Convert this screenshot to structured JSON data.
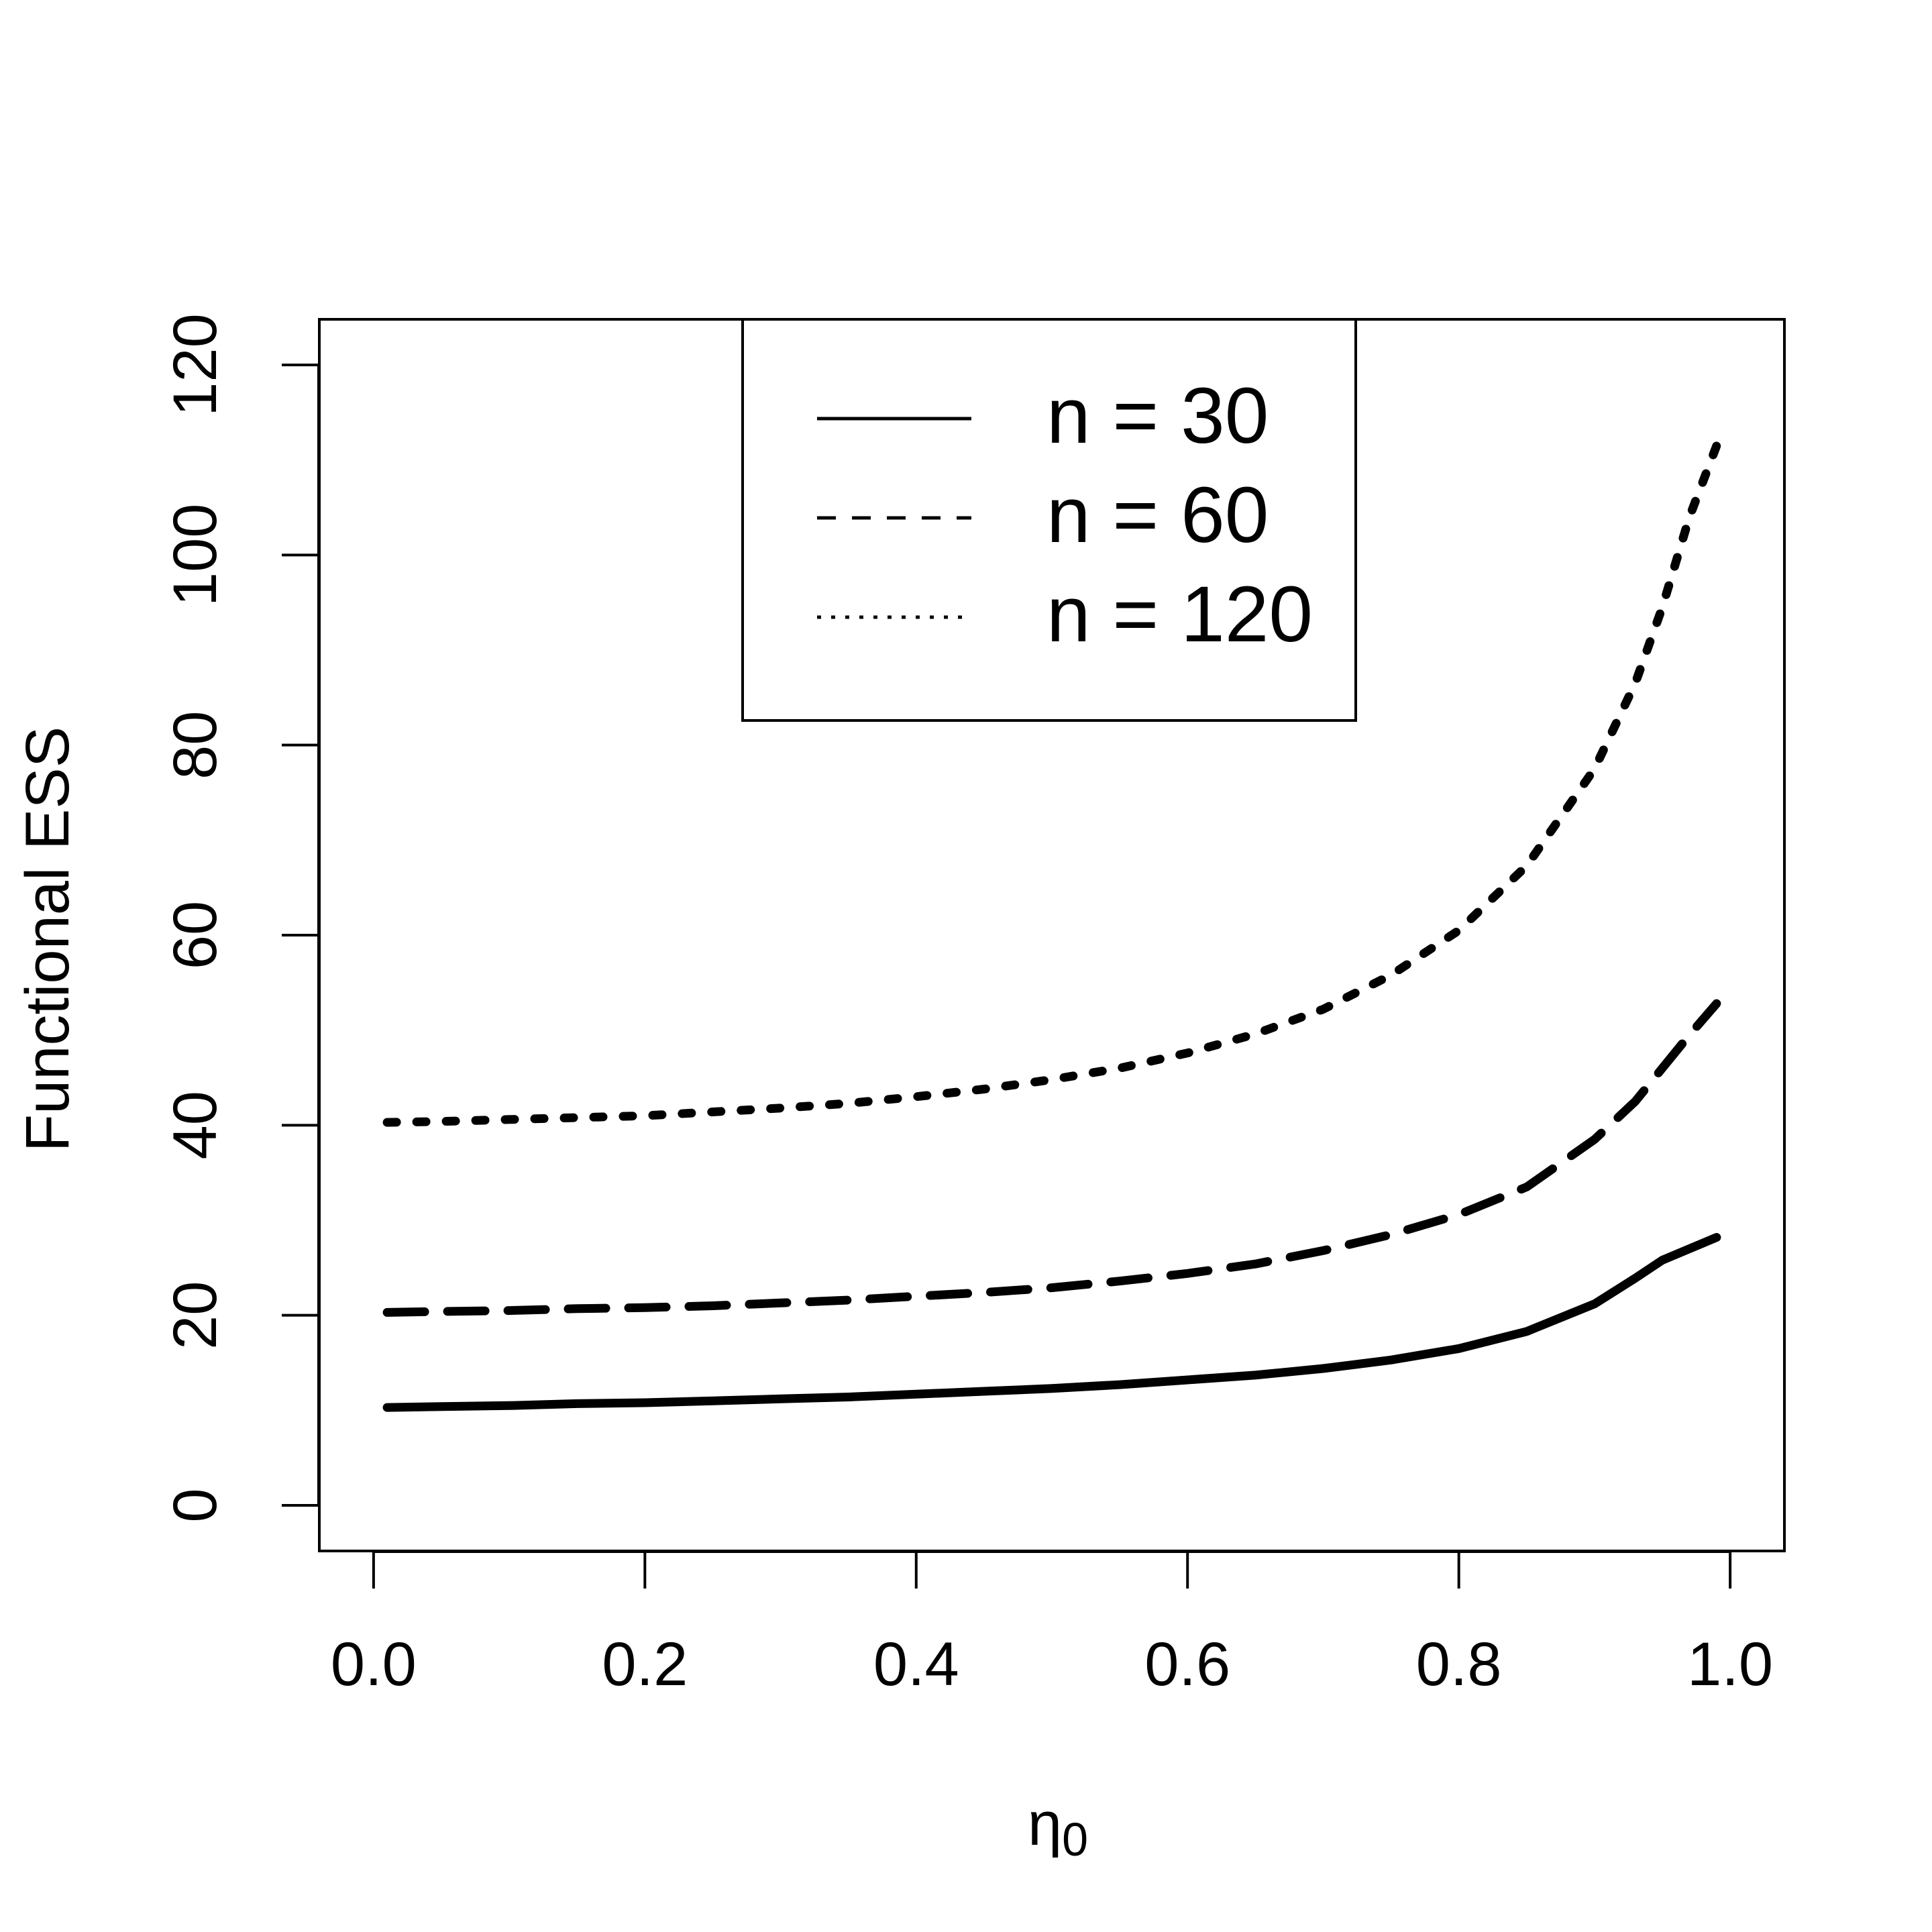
{
  "chart_data": {
    "type": "line",
    "title": "",
    "xlabel": "η",
    "xlabel_subscript": "0",
    "ylabel": "Functional ESS",
    "xlim": [
      -0.04,
      1.04
    ],
    "ylim": [
      -4.8,
      124.8
    ],
    "x_ticks": [
      0.0,
      0.2,
      0.4,
      0.6,
      0.8,
      1.0
    ],
    "x_tick_labels": [
      "0.0",
      "0.2",
      "0.4",
      "0.6",
      "0.8",
      "1.0"
    ],
    "y_ticks": [
      0,
      20,
      40,
      60,
      80,
      100,
      120
    ],
    "y_tick_labels": [
      "0",
      "20",
      "40",
      "60",
      "80",
      "100",
      "120"
    ],
    "grid": false,
    "legend_position": "top-center",
    "x": [
      0.01,
      0.05,
      0.1,
      0.15,
      0.2,
      0.25,
      0.3,
      0.35,
      0.4,
      0.45,
      0.5,
      0.55,
      0.6,
      0.65,
      0.7,
      0.75,
      0.8,
      0.85,
      0.9,
      0.93,
      0.95,
      0.97,
      0.99
    ],
    "series": [
      {
        "name": "n = 30",
        "line_style": "solid",
        "values": [
          10.3,
          10.4,
          10.5,
          10.7,
          10.8,
          11.0,
          11.2,
          11.4,
          11.7,
          12.0,
          12.3,
          12.7,
          13.2,
          13.7,
          14.4,
          15.3,
          16.5,
          18.3,
          21.2,
          23.9,
          25.8,
          27.0,
          28.2
        ]
      },
      {
        "name": "n = 60",
        "line_style": "dashed",
        "values": [
          20.3,
          20.4,
          20.5,
          20.7,
          20.8,
          21.0,
          21.3,
          21.6,
          22.0,
          22.4,
          22.9,
          23.6,
          24.4,
          25.4,
          26.8,
          28.5,
          30.6,
          33.5,
          38.5,
          42.5,
          46.0,
          49.5,
          52.8
        ]
      },
      {
        "name": "n = 120",
        "line_style": "dotted",
        "values": [
          40.3,
          40.4,
          40.6,
          40.8,
          41.0,
          41.4,
          41.8,
          42.3,
          43.0,
          43.8,
          44.8,
          46.0,
          47.6,
          49.6,
          52.2,
          55.8,
          60.5,
          67.3,
          77.5,
          86.5,
          94.5,
          104.0,
          111.5
        ]
      }
    ]
  }
}
